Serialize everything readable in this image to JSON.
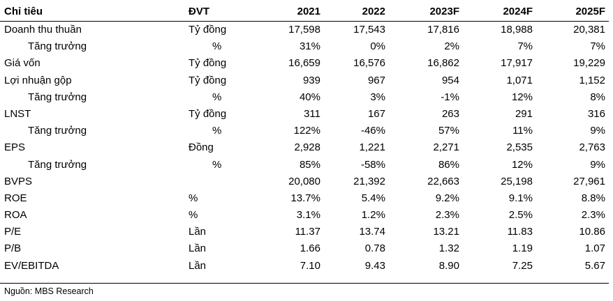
{
  "header": {
    "name": "Chỉ tiêu",
    "unit": "ĐVT",
    "years": [
      "2021",
      "2022",
      "2023F",
      "2024F",
      "2025F"
    ]
  },
  "rows": [
    {
      "name": "Doanh thu thuần",
      "unit": "Tỷ đồng",
      "values": [
        "17,598",
        "17,543",
        "17,816",
        "18,988",
        "20,381"
      ]
    },
    {
      "name": "Tăng trưởng",
      "unit": "%",
      "values": [
        "31%",
        "0%",
        "2%",
        "7%",
        "7%"
      ]
    },
    {
      "name": "Giá vốn",
      "unit": "Tỷ đồng",
      "values": [
        "16,659",
        "16,576",
        "16,862",
        "17,917",
        "19,229"
      ]
    },
    {
      "name": "Lợi nhuận gộp",
      "unit": "Tỷ đồng",
      "values": [
        "939",
        "967",
        "954",
        "1,071",
        "1,152"
      ]
    },
    {
      "name": "Tăng trưởng",
      "unit": "%",
      "values": [
        "40%",
        "3%",
        "-1%",
        "12%",
        "8%"
      ]
    },
    {
      "name": "LNST",
      "unit": "Tỷ đồng",
      "values": [
        "311",
        "167",
        "263",
        "291",
        "316"
      ]
    },
    {
      "name": "Tăng trưởng",
      "unit": "%",
      "values": [
        "122%",
        "-46%",
        "57%",
        "11%",
        "9%"
      ]
    },
    {
      "name": "EPS",
      "unit": "Đồng",
      "values": [
        "2,928",
        "1,221",
        "2,271",
        "2,535",
        "2,763"
      ]
    },
    {
      "name": "Tăng trưởng",
      "unit": "%",
      "values": [
        "85%",
        "-58%",
        "86%",
        "12%",
        "9%"
      ]
    },
    {
      "name": "BVPS",
      "unit": "",
      "values": [
        "20,080",
        "21,392",
        "22,663",
        "25,198",
        "27,961"
      ]
    },
    {
      "name": "ROE",
      "unit": "%",
      "values": [
        "13.7%",
        "5.4%",
        "9.2%",
        "9.1%",
        "8.8%"
      ]
    },
    {
      "name": "ROA",
      "unit": "%",
      "values": [
        "3.1%",
        "1.2%",
        "2.3%",
        "2.5%",
        "2.3%"
      ]
    },
    {
      "name": "P/E",
      "unit": "Lần",
      "values": [
        "11.37",
        "13.74",
        "13.21",
        "11.83",
        "10.86"
      ]
    },
    {
      "name": "P/B",
      "unit": "Lần",
      "values": [
        "1.66",
        "0.78",
        "1.32",
        "1.19",
        "1.07"
      ]
    },
    {
      "name": "EV/EBITDA",
      "unit": "Lần",
      "values": [
        "7.10",
        "9.43",
        "8.90",
        "7.25",
        "5.67"
      ]
    }
  ],
  "source": "Nguồn: MBS Research"
}
